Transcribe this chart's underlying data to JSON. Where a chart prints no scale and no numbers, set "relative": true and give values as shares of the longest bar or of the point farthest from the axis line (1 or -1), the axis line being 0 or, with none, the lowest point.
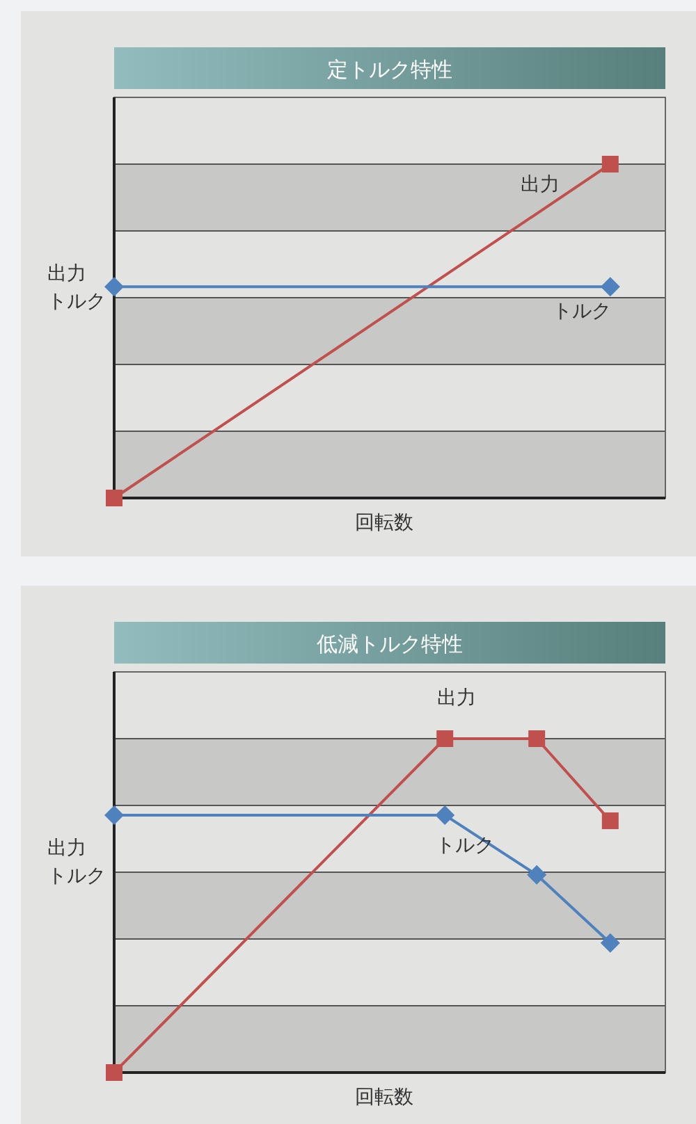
{
  "chart_data": [
    {
      "type": "line",
      "title": "定トルク特性",
      "xlabel": "回転数",
      "ylabel": "出力トルク",
      "relative": true,
      "line_style": "solid",
      "categories": [
        null,
        null
      ],
      "bands": [
        {
          "axis": "y",
          "from": 0,
          "to": 0.2,
          "color": "#c8c8c6"
        },
        {
          "axis": "y",
          "from": 0.4,
          "to": 0.6,
          "color": "#c8c8c6"
        },
        {
          "axis": "y",
          "from": 0.8,
          "to": 1,
          "color": "#c8c8c6"
        }
      ],
      "ref_lines": [
        {
          "axis": "y",
          "value": 0.2,
          "color": "#555555"
        },
        {
          "axis": "y",
          "value": 0.4,
          "color": "#555555"
        },
        {
          "axis": "y",
          "value": 0.6,
          "color": "#555555"
        },
        {
          "axis": "y",
          "value": 0.8,
          "color": "#555555"
        },
        {
          "axis": "y",
          "value": 1,
          "color": "#555555"
        }
      ],
      "series": [
        {
          "name": "出力",
          "color": "#c0504d",
          "marker": "square",
          "values": [
            0,
            1
          ]
        },
        {
          "name": "トルク",
          "color": "#4f81bd",
          "marker": "diamond",
          "values": [
            0.633,
            0.633
          ]
        }
      ]
    },
    {
      "type": "line",
      "title": "低減トルク特性",
      "xlabel": "回転数",
      "ylabel": "出力トルク",
      "relative": true,
      "line_style": "solid",
      "categories": [
        null,
        null,
        null,
        null,
        null,
        null,
        null,
        null,
        null,
        null,
        null,
        null,
        null,
        null,
        null,
        null,
        null,
        null,
        null,
        null,
        null,
        null,
        null,
        null,
        null,
        null,
        null,
        null
      ],
      "bands": [
        {
          "axis": "y",
          "from": 0,
          "to": 0.2,
          "color": "#c8c8c6"
        },
        {
          "axis": "y",
          "from": 0.4,
          "to": 0.6,
          "color": "#c8c8c6"
        },
        {
          "axis": "y",
          "from": 0.8,
          "to": 1,
          "color": "#c8c8c6"
        }
      ],
      "ref_lines": [
        {
          "axis": "y",
          "value": 0.2,
          "color": "#555555"
        },
        {
          "axis": "y",
          "value": 0.4,
          "color": "#555555"
        },
        {
          "axis": "y",
          "value": 0.6,
          "color": "#555555"
        },
        {
          "axis": "y",
          "value": 0.8,
          "color": "#555555"
        },
        {
          "axis": "y",
          "value": 1,
          "color": "#555555"
        }
      ],
      "series": [
        {
          "name": "出力",
          "color": "#c0504d",
          "marker": "square",
          "values": [
            0,
            null,
            null,
            null,
            null,
            null,
            null,
            null,
            null,
            null,
            null,
            null,
            null,
            null,
            null,
            null,
            null,
            null,
            1,
            null,
            null,
            null,
            null,
            1,
            null,
            null,
            null,
            0.754
          ]
        },
        {
          "name": "トルク",
          "color": "#4f81bd",
          "marker": "diamond",
          "values": [
            0.771,
            null,
            null,
            null,
            null,
            null,
            null,
            null,
            null,
            null,
            null,
            null,
            null,
            null,
            null,
            null,
            null,
            null,
            0.771,
            null,
            null,
            null,
            null,
            0.592,
            null,
            null,
            null,
            0.388
          ]
        }
      ]
    }
  ]
}
